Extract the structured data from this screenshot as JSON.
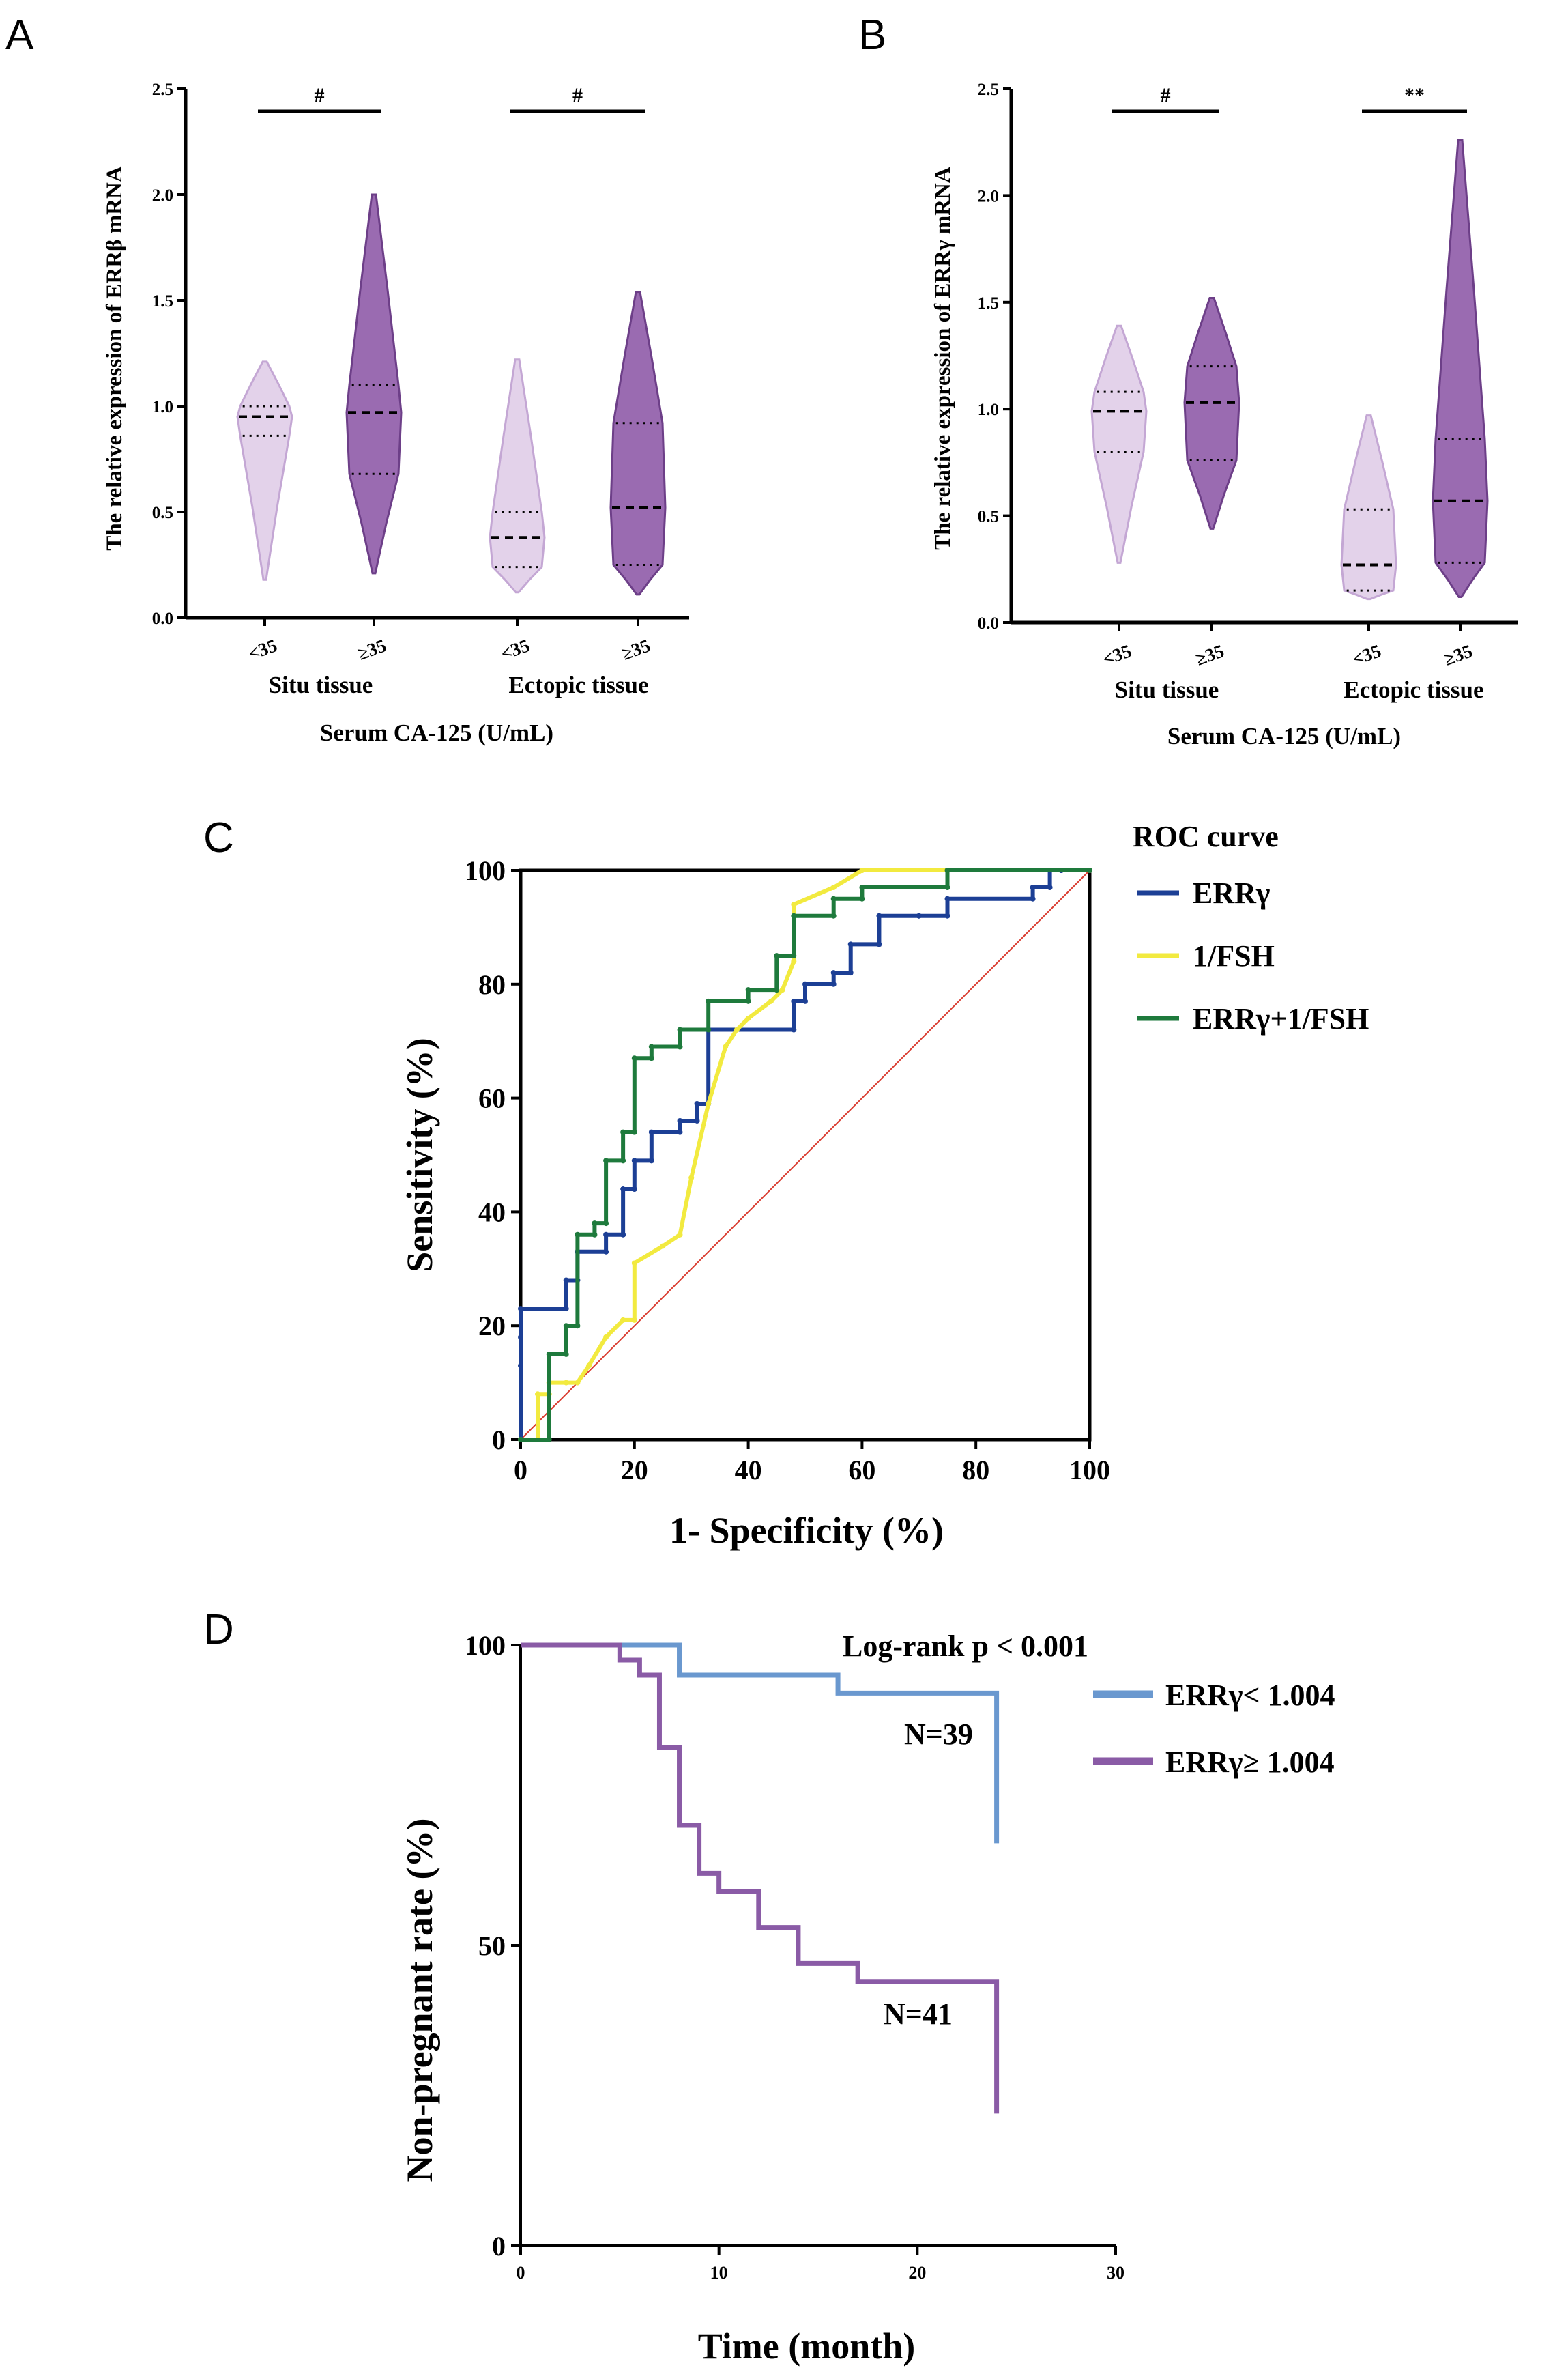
{
  "panels": {
    "A": {
      "letter": "A",
      "chart_data": {
        "type": "violin",
        "ylabel": "The relative expression of ERRβ mRNA",
        "xlabel": "Serum CA-125 (U/mL)",
        "ylim": [
          0,
          2.5
        ],
        "yticks": [
          "0.0",
          "0.5",
          "1.0",
          "1.5",
          "2.0",
          "2.5"
        ],
        "groups": [
          {
            "name": "Situ tissue",
            "significance": "#",
            "categories": [
              "<35",
              "≥35"
            ]
          },
          {
            "name": "Ectopic tissue",
            "significance": "#",
            "categories": [
              "<35",
              "≥35"
            ]
          }
        ],
        "violins": [
          {
            "group": "Situ tissue",
            "category": "<35",
            "min": 0.18,
            "q1": 0.86,
            "median": 0.95,
            "q3": 1.0,
            "max": 1.21,
            "color": "#d9c3e3"
          },
          {
            "group": "Situ tissue",
            "category": "≥35",
            "min": 0.21,
            "q1": 0.68,
            "median": 0.97,
            "q3": 1.1,
            "max": 2.0,
            "color": "#8f5ba8"
          },
          {
            "group": "Ectopic tissue",
            "category": "<35",
            "min": 0.12,
            "q1": 0.24,
            "median": 0.38,
            "q3": 0.5,
            "max": 1.22,
            "color": "#d9c3e3"
          },
          {
            "group": "Ectopic tissue",
            "category": "≥35",
            "min": 0.11,
            "q1": 0.25,
            "median": 0.52,
            "q3": 0.92,
            "max": 1.54,
            "color": "#8f5ba8"
          }
        ]
      }
    },
    "B": {
      "letter": "B",
      "chart_data": {
        "type": "violin",
        "ylabel": "The relative expression of ERRγ mRNA",
        "xlabel": "Serum CA-125 (U/mL)",
        "ylim": [
          0,
          2.5
        ],
        "yticks": [
          "0.0",
          "0.5",
          "1.0",
          "1.5",
          "2.0",
          "2.5"
        ],
        "groups": [
          {
            "name": "Situ tissue",
            "significance": "#",
            "categories": [
              "<35",
              "≥35"
            ]
          },
          {
            "name": "Ectopic tissue",
            "significance": "**",
            "categories": [
              "<35",
              "≥35"
            ]
          }
        ],
        "violins": [
          {
            "group": "Situ tissue",
            "category": "<35",
            "min": 0.28,
            "q1": 0.8,
            "median": 0.99,
            "q3": 1.08,
            "max": 1.39,
            "color": "#d9c3e3"
          },
          {
            "group": "Situ tissue",
            "category": "≥35",
            "min": 0.44,
            "q1": 0.76,
            "median": 1.03,
            "q3": 1.2,
            "max": 1.52,
            "color": "#8f5ba8"
          },
          {
            "group": "Ectopic tissue",
            "category": "<35",
            "min": 0.11,
            "q1": 0.15,
            "median": 0.27,
            "q3": 0.53,
            "max": 0.97,
            "color": "#d9c3e3"
          },
          {
            "group": "Ectopic tissue",
            "category": "≥35",
            "min": 0.12,
            "q1": 0.28,
            "median": 0.57,
            "q3": 0.86,
            "max": 2.26,
            "color": "#8f5ba8"
          }
        ]
      }
    },
    "C": {
      "letter": "C",
      "chart_data": {
        "type": "line",
        "title": "ROC curve",
        "xlabel": "1- Specificity (%)",
        "ylabel": "Sensitivity (%)",
        "xlim": [
          0,
          100
        ],
        "ylim": [
          0,
          100
        ],
        "xticks": [
          "0",
          "20",
          "40",
          "60",
          "80",
          "100"
        ],
        "yticks": [
          "0",
          "20",
          "40",
          "60",
          "80",
          "100"
        ],
        "reference_line_color": "#d93a2e",
        "series": [
          {
            "name": "ERRγ",
            "color": "#1c3f95",
            "x": [
              0,
              0,
              0,
              0,
              8,
              8,
              10,
              10,
              15,
              15,
              18,
              18,
              20,
              20,
              23,
              23,
              28,
              28,
              31,
              31,
              33,
              33,
              48,
              48,
              50,
              50,
              55,
              55,
              58,
              58,
              63,
              63,
              70,
              70,
              75,
              75,
              90,
              90,
              93,
              93,
              95,
              95,
              100,
              100
            ],
            "y": [
              0,
              13,
              18,
              23,
              23,
              28,
              28,
              33,
              33,
              36,
              36,
              44,
              44,
              49,
              49,
              54,
              54,
              56,
              56,
              59,
              59,
              72,
              72,
              77,
              77,
              80,
              80,
              82,
              82,
              87,
              87,
              92,
              92,
              92,
              92,
              95,
              95,
              97,
              97,
              100,
              100,
              100,
              100,
              100
            ]
          },
          {
            "name": "1/FSH",
            "color": "#f2ea3f",
            "x": [
              0,
              3,
              3,
              5,
              5,
              8,
              10,
              12,
              15,
              18,
              20,
              20,
              25,
              28,
              30,
              33,
              36,
              38,
              40,
              44,
              46,
              48,
              48,
              55,
              60,
              60,
              100
            ],
            "y": [
              0,
              0,
              8,
              8,
              10,
              10,
              10,
              13,
              18,
              21,
              21,
              31,
              34,
              36,
              46,
              59,
              69,
              72,
              74,
              77,
              79,
              84,
              94,
              97,
              100,
              100,
              100
            ]
          },
          {
            "name": "ERRγ+1/FSH",
            "color": "#1e7a3c",
            "x": [
              0,
              5,
              5,
              8,
              8,
              10,
              10,
              13,
              13,
              15,
              15,
              18,
              18,
              20,
              20,
              23,
              23,
              28,
              28,
              33,
              33,
              40,
              40,
              45,
              45,
              48,
              48,
              55,
              55,
              60,
              60,
              75,
              75,
              100
            ],
            "y": [
              0,
              0,
              15,
              15,
              20,
              20,
              36,
              36,
              38,
              38,
              49,
              49,
              54,
              54,
              67,
              67,
              69,
              69,
              72,
              72,
              77,
              77,
              79,
              79,
              85,
              85,
              92,
              92,
              95,
              95,
              97,
              97,
              100,
              100
            ]
          }
        ]
      }
    },
    "D": {
      "letter": "D",
      "chart_data": {
        "type": "line",
        "title": "Log-rank p < 0.001",
        "xlabel": "Time (month)",
        "ylabel": "Non-pregnant rate (%)",
        "xlim": [
          0,
          30
        ],
        "ylim": [
          0,
          100
        ],
        "xticks": [
          "0",
          "10",
          "20",
          "30"
        ],
        "yticks": [
          "0",
          "50",
          "100"
        ],
        "series": [
          {
            "name": "ERRγ< 1.004",
            "n_label": "N=39",
            "color": "#6a98cf",
            "x": [
              0,
              8,
              8,
              16,
              16,
              24,
              24
            ],
            "y": [
              100,
              100,
              95,
              95,
              92,
              92,
              67
            ]
          },
          {
            "name": "ERRγ≥ 1.004",
            "n_label": "N=41",
            "color": "#8a5ba6",
            "x": [
              0,
              5,
              5,
              6,
              6,
              7,
              7,
              8,
              8,
              9,
              9,
              10,
              10,
              12,
              12,
              14,
              14,
              17,
              17,
              24,
              24
            ],
            "y": [
              100,
              100,
              97.5,
              97.5,
              95,
              95,
              83,
              83,
              70,
              70,
              62,
              62,
              59,
              59,
              53,
              53,
              47,
              47,
              44,
              44,
              22
            ]
          }
        ]
      }
    }
  }
}
